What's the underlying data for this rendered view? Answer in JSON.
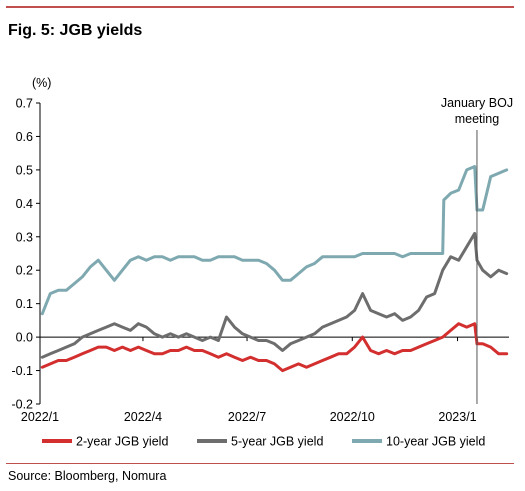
{
  "title": "Fig. 5: JGB yields",
  "source": "Source: Bloomberg, Nomura",
  "chart_data": {
    "type": "line",
    "ylabel": "(%)",
    "ylim": [
      -0.2,
      0.7
    ],
    "yticks": [
      "0.7",
      "0.6",
      "0.5",
      "0.4",
      "0.3",
      "0.2",
      "0.1",
      "0.0",
      "-0.1",
      "-0.2"
    ],
    "xlim": [
      "2022-01-01",
      "2023-02-15"
    ],
    "xticks": [
      {
        "date": "2022-01-01",
        "label": "2022/1"
      },
      {
        "date": "2022-04-01",
        "label": "2022/4"
      },
      {
        "date": "2022-07-01",
        "label": "2022/7"
      },
      {
        "date": "2022-10-01",
        "label": "2022/10"
      },
      {
        "date": "2023-01-01",
        "label": "2023/1"
      }
    ],
    "grid": false,
    "legend_position": "bottom",
    "annotation": {
      "text": [
        "January BOJ",
        "meeting"
      ],
      "date": "2023-01-18"
    },
    "series": [
      {
        "name": "2-year JGB yield",
        "color": "#d32f2f",
        "points": [
          [
            "2022-01-03",
            -0.09
          ],
          [
            "2022-01-10",
            -0.08
          ],
          [
            "2022-01-17",
            -0.07
          ],
          [
            "2022-01-24",
            -0.07
          ],
          [
            "2022-01-31",
            -0.06
          ],
          [
            "2022-02-07",
            -0.05
          ],
          [
            "2022-02-14",
            -0.04
          ],
          [
            "2022-02-21",
            -0.03
          ],
          [
            "2022-02-28",
            -0.03
          ],
          [
            "2022-03-07",
            -0.04
          ],
          [
            "2022-03-14",
            -0.03
          ],
          [
            "2022-03-21",
            -0.04
          ],
          [
            "2022-03-28",
            -0.03
          ],
          [
            "2022-04-04",
            -0.04
          ],
          [
            "2022-04-11",
            -0.05
          ],
          [
            "2022-04-18",
            -0.05
          ],
          [
            "2022-04-25",
            -0.04
          ],
          [
            "2022-05-02",
            -0.04
          ],
          [
            "2022-05-09",
            -0.03
          ],
          [
            "2022-05-16",
            -0.04
          ],
          [
            "2022-05-23",
            -0.04
          ],
          [
            "2022-05-30",
            -0.05
          ],
          [
            "2022-06-06",
            -0.06
          ],
          [
            "2022-06-13",
            -0.05
          ],
          [
            "2022-06-20",
            -0.06
          ],
          [
            "2022-06-27",
            -0.07
          ],
          [
            "2022-07-04",
            -0.06
          ],
          [
            "2022-07-11",
            -0.07
          ],
          [
            "2022-07-18",
            -0.07
          ],
          [
            "2022-07-25",
            -0.08
          ],
          [
            "2022-08-01",
            -0.1
          ],
          [
            "2022-08-08",
            -0.09
          ],
          [
            "2022-08-15",
            -0.08
          ],
          [
            "2022-08-22",
            -0.09
          ],
          [
            "2022-08-29",
            -0.08
          ],
          [
            "2022-09-05",
            -0.07
          ],
          [
            "2022-09-12",
            -0.06
          ],
          [
            "2022-09-19",
            -0.05
          ],
          [
            "2022-09-26",
            -0.05
          ],
          [
            "2022-10-03",
            -0.03
          ],
          [
            "2022-10-10",
            0.0
          ],
          [
            "2022-10-17",
            -0.04
          ],
          [
            "2022-10-24",
            -0.05
          ],
          [
            "2022-10-31",
            -0.04
          ],
          [
            "2022-11-07",
            -0.05
          ],
          [
            "2022-11-14",
            -0.04
          ],
          [
            "2022-11-21",
            -0.04
          ],
          [
            "2022-11-28",
            -0.03
          ],
          [
            "2022-12-05",
            -0.02
          ],
          [
            "2022-12-12",
            -0.01
          ],
          [
            "2022-12-19",
            0.0
          ],
          [
            "2022-12-26",
            0.02
          ],
          [
            "2023-01-02",
            0.04
          ],
          [
            "2023-01-09",
            0.03
          ],
          [
            "2023-01-16",
            0.04
          ],
          [
            "2023-01-18",
            -0.02
          ],
          [
            "2023-01-23",
            -0.02
          ],
          [
            "2023-01-30",
            -0.03
          ],
          [
            "2023-02-06",
            -0.05
          ],
          [
            "2023-02-13",
            -0.05
          ]
        ]
      },
      {
        "name": "5-year JGB yield",
        "color": "#6d6d6d",
        "points": [
          [
            "2022-01-03",
            -0.06
          ],
          [
            "2022-01-10",
            -0.05
          ],
          [
            "2022-01-17",
            -0.04
          ],
          [
            "2022-01-24",
            -0.03
          ],
          [
            "2022-01-31",
            -0.02
          ],
          [
            "2022-02-07",
            0.0
          ],
          [
            "2022-02-14",
            0.01
          ],
          [
            "2022-02-21",
            0.02
          ],
          [
            "2022-02-28",
            0.03
          ],
          [
            "2022-03-07",
            0.04
          ],
          [
            "2022-03-14",
            0.03
          ],
          [
            "2022-03-21",
            0.02
          ],
          [
            "2022-03-28",
            0.04
          ],
          [
            "2022-04-04",
            0.03
          ],
          [
            "2022-04-11",
            0.01
          ],
          [
            "2022-04-18",
            0.0
          ],
          [
            "2022-04-25",
            0.01
          ],
          [
            "2022-05-02",
            0.0
          ],
          [
            "2022-05-09",
            0.01
          ],
          [
            "2022-05-16",
            0.0
          ],
          [
            "2022-05-23",
            -0.01
          ],
          [
            "2022-05-30",
            0.0
          ],
          [
            "2022-06-06",
            -0.01
          ],
          [
            "2022-06-13",
            0.06
          ],
          [
            "2022-06-20",
            0.03
          ],
          [
            "2022-06-27",
            0.01
          ],
          [
            "2022-07-04",
            0.0
          ],
          [
            "2022-07-11",
            -0.01
          ],
          [
            "2022-07-18",
            -0.01
          ],
          [
            "2022-07-25",
            -0.02
          ],
          [
            "2022-08-01",
            -0.04
          ],
          [
            "2022-08-08",
            -0.02
          ],
          [
            "2022-08-15",
            -0.01
          ],
          [
            "2022-08-22",
            0.0
          ],
          [
            "2022-08-29",
            0.01
          ],
          [
            "2022-09-05",
            0.03
          ],
          [
            "2022-09-12",
            0.04
          ],
          [
            "2022-09-19",
            0.05
          ],
          [
            "2022-09-26",
            0.06
          ],
          [
            "2022-10-03",
            0.08
          ],
          [
            "2022-10-10",
            0.13
          ],
          [
            "2022-10-17",
            0.08
          ],
          [
            "2022-10-24",
            0.07
          ],
          [
            "2022-10-31",
            0.06
          ],
          [
            "2022-11-07",
            0.07
          ],
          [
            "2022-11-14",
            0.05
          ],
          [
            "2022-11-21",
            0.06
          ],
          [
            "2022-11-28",
            0.08
          ],
          [
            "2022-12-05",
            0.12
          ],
          [
            "2022-12-12",
            0.13
          ],
          [
            "2022-12-19",
            0.2
          ],
          [
            "2022-12-26",
            0.24
          ],
          [
            "2023-01-02",
            0.23
          ],
          [
            "2023-01-09",
            0.27
          ],
          [
            "2023-01-16",
            0.31
          ],
          [
            "2023-01-18",
            0.23
          ],
          [
            "2023-01-23",
            0.2
          ],
          [
            "2023-01-30",
            0.18
          ],
          [
            "2023-02-06",
            0.2
          ],
          [
            "2023-02-13",
            0.19
          ]
        ]
      },
      {
        "name": "10-year JGB yield",
        "color": "#7fa9b0",
        "points": [
          [
            "2022-01-03",
            0.07
          ],
          [
            "2022-01-10",
            0.13
          ],
          [
            "2022-01-17",
            0.14
          ],
          [
            "2022-01-24",
            0.14
          ],
          [
            "2022-01-31",
            0.16
          ],
          [
            "2022-02-07",
            0.18
          ],
          [
            "2022-02-14",
            0.21
          ],
          [
            "2022-02-21",
            0.23
          ],
          [
            "2022-02-28",
            0.2
          ],
          [
            "2022-03-07",
            0.17
          ],
          [
            "2022-03-14",
            0.2
          ],
          [
            "2022-03-21",
            0.23
          ],
          [
            "2022-03-28",
            0.24
          ],
          [
            "2022-04-04",
            0.23
          ],
          [
            "2022-04-11",
            0.24
          ],
          [
            "2022-04-18",
            0.24
          ],
          [
            "2022-04-25",
            0.23
          ],
          [
            "2022-05-02",
            0.24
          ],
          [
            "2022-05-09",
            0.24
          ],
          [
            "2022-05-16",
            0.24
          ],
          [
            "2022-05-23",
            0.23
          ],
          [
            "2022-05-30",
            0.23
          ],
          [
            "2022-06-06",
            0.24
          ],
          [
            "2022-06-13",
            0.24
          ],
          [
            "2022-06-20",
            0.24
          ],
          [
            "2022-06-27",
            0.23
          ],
          [
            "2022-07-04",
            0.23
          ],
          [
            "2022-07-11",
            0.23
          ],
          [
            "2022-07-18",
            0.22
          ],
          [
            "2022-07-25",
            0.2
          ],
          [
            "2022-08-01",
            0.17
          ],
          [
            "2022-08-08",
            0.17
          ],
          [
            "2022-08-15",
            0.19
          ],
          [
            "2022-08-22",
            0.21
          ],
          [
            "2022-08-29",
            0.22
          ],
          [
            "2022-09-05",
            0.24
          ],
          [
            "2022-09-12",
            0.24
          ],
          [
            "2022-09-19",
            0.24
          ],
          [
            "2022-09-26",
            0.24
          ],
          [
            "2022-10-03",
            0.24
          ],
          [
            "2022-10-10",
            0.25
          ],
          [
            "2022-10-17",
            0.25
          ],
          [
            "2022-10-24",
            0.25
          ],
          [
            "2022-10-31",
            0.25
          ],
          [
            "2022-11-07",
            0.25
          ],
          [
            "2022-11-14",
            0.24
          ],
          [
            "2022-11-21",
            0.25
          ],
          [
            "2022-11-28",
            0.25
          ],
          [
            "2022-12-05",
            0.25
          ],
          [
            "2022-12-12",
            0.25
          ],
          [
            "2022-12-19",
            0.25
          ],
          [
            "2022-12-20",
            0.41
          ],
          [
            "2022-12-26",
            0.43
          ],
          [
            "2023-01-02",
            0.44
          ],
          [
            "2023-01-09",
            0.5
          ],
          [
            "2023-01-16",
            0.51
          ],
          [
            "2023-01-18",
            0.38
          ],
          [
            "2023-01-23",
            0.38
          ],
          [
            "2023-01-30",
            0.48
          ],
          [
            "2023-02-06",
            0.49
          ],
          [
            "2023-02-13",
            0.5
          ]
        ]
      }
    ]
  }
}
